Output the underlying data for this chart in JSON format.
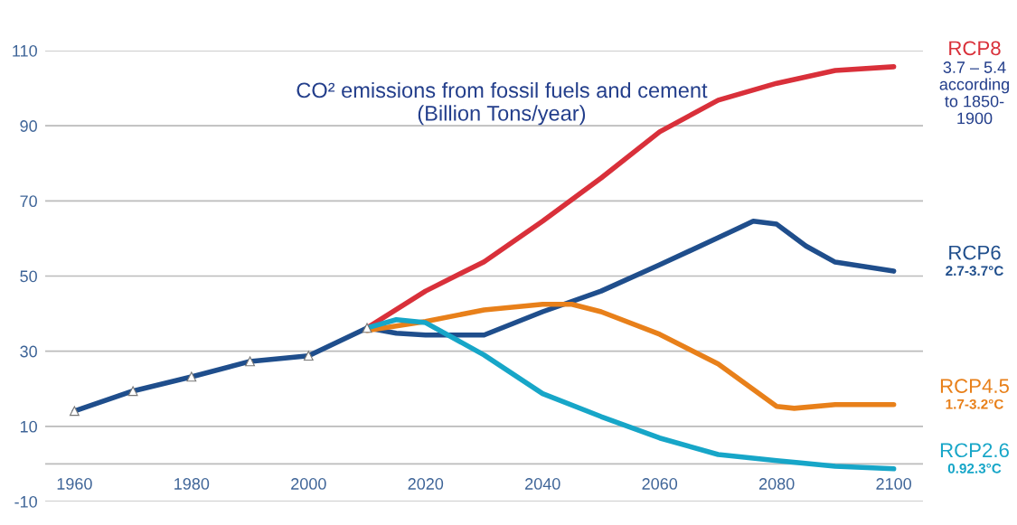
{
  "chart_data": {
    "type": "line",
    "title": "CO² emissions from fossil fuels and cement\n(Billion Tons/year)",
    "xlim": [
      1955,
      2105
    ],
    "xticks": [
      1960,
      1980,
      2000,
      2020,
      2040,
      2060,
      2080,
      2100
    ],
    "ylim": [
      -10,
      110
    ],
    "yticks": [
      -10,
      {
        "value": 0,
        "label": null
      },
      10,
      30,
      50,
      70,
      90,
      110
    ],
    "grid": "y",
    "legend": false,
    "line_style": "solid",
    "series": [
      {
        "color": "#1f4e8c",
        "marker": "triangle",
        "x": [
          1960,
          1970,
          1980,
          1990,
          2000,
          2010
        ],
        "values": [
          14.1,
          19.4,
          23.2,
          27.3,
          28.8,
          36.2
        ]
      },
      {
        "name": "RCP8",
        "color": "#d9303a",
        "x": [
          2010,
          2020,
          2030,
          2040,
          2050,
          2060,
          2070,
          2080,
          2090,
          2100
        ],
        "values": [
          36.2,
          46.0,
          53.8,
          64.6,
          76.1,
          88.4,
          96.8,
          101.3,
          104.7,
          105.7
        ]
      },
      {
        "name": "RCP6",
        "color": "#1f4e8c",
        "x": [
          2010,
          2015,
          2020,
          2030,
          2040,
          2050,
          2060,
          2070,
          2076,
          2080,
          2085,
          2090,
          2100
        ],
        "values": [
          36.2,
          34.8,
          34.3,
          34.3,
          40.5,
          46.0,
          53.0,
          60.2,
          64.6,
          63.8,
          58.0,
          53.7,
          51.3
        ]
      },
      {
        "name": "RCP4.5",
        "color": "#e8801a",
        "x": [
          2010,
          2020,
          2030,
          2040,
          2045,
          2050,
          2060,
          2070,
          2080,
          2083,
          2090,
          2100
        ],
        "values": [
          35.5,
          37.9,
          41.0,
          42.5,
          42.5,
          40.5,
          34.5,
          26.6,
          15.3,
          14.8,
          15.8,
          15.8
        ]
      },
      {
        "name": "RCP2.6",
        "color": "#17a6c8",
        "x": [
          2010,
          2015,
          2020,
          2030,
          2040,
          2050,
          2060,
          2070,
          2080,
          2090,
          2100
        ],
        "values": [
          36.2,
          38.4,
          37.6,
          29.0,
          18.7,
          12.6,
          6.9,
          2.5,
          0.9,
          -0.6,
          -1.3
        ]
      }
    ],
    "annotations": [
      "3.7 – 5.4\naccording\nto 1850-\n1900",
      "2.7-3.7°C",
      "1.7-3.2°C",
      "0.92.3°C"
    ]
  }
}
